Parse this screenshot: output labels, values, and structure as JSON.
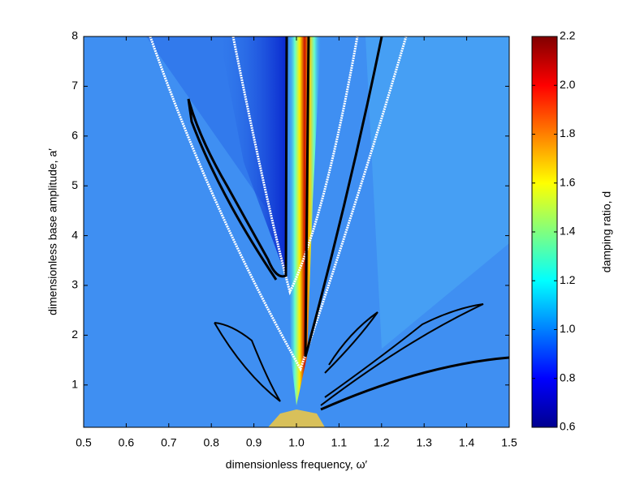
{
  "chart_data": {
    "type": "heatmap",
    "xlabel": "dimensionless frequency, ω′",
    "ylabel": "dimensionless base amplitude, a′",
    "xlim": [
      0.5,
      1.5
    ],
    "xticks": [
      0.5,
      0.6,
      0.7,
      0.8,
      0.9,
      {
        "value": 1,
        "label": "1.0"
      },
      1.1,
      1.2,
      1.3,
      1.4,
      1.5
    ],
    "ylim": [
      0.15,
      8
    ],
    "yticks": [
      1,
      2,
      3,
      4,
      5,
      6,
      7,
      8
    ],
    "colormap": "jet",
    "colorbar": {
      "label": "damping ratio, d",
      "lim": [
        0.6,
        2.2
      ],
      "ticks": [
        0.6,
        0.8,
        {
          "value": 1,
          "label": "1.0"
        },
        1.2,
        1.4,
        1.6,
        1.8,
        {
          "value": 2,
          "label": "2.0"
        },
        2.2
      ]
    }
  }
}
